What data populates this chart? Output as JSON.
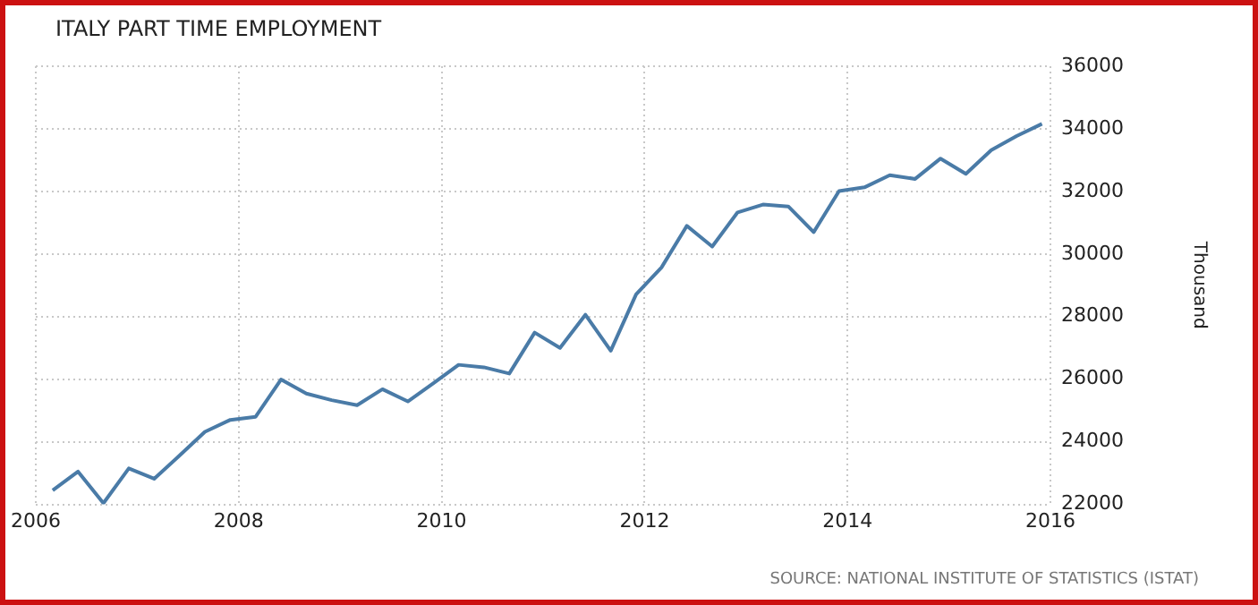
{
  "chart_data": {
    "type": "line",
    "title": "ITALY PART TIME EMPLOYMENT",
    "ylabel": "Thousand",
    "annotations": [
      "SOURCE: NATIONAL INSTITUTE OF STATISTICS (ISTAT)"
    ],
    "x": [
      "2006-03",
      "2006-06",
      "2006-09",
      "2006-12",
      "2007-03",
      "2007-06",
      "2007-09",
      "2007-12",
      "2008-03",
      "2008-06",
      "2008-09",
      "2008-12",
      "2009-03",
      "2009-06",
      "2009-09",
      "2009-12",
      "2010-03",
      "2010-06",
      "2010-09",
      "2010-12",
      "2011-03",
      "2011-06",
      "2011-09",
      "2011-12",
      "2012-03",
      "2012-06",
      "2012-09",
      "2012-12",
      "2013-03",
      "2013-06",
      "2013-09",
      "2013-12",
      "2014-03",
      "2014-06",
      "2014-09",
      "2014-12",
      "2015-03",
      "2015-06",
      "2015-09",
      "2015-12"
    ],
    "series": [
      {
        "color": "#4a7ba7",
        "values": [
          22450,
          23050,
          22040,
          23150,
          22820,
          23560,
          24320,
          24700,
          24800,
          25990,
          25540,
          25330,
          25170,
          25680,
          25290,
          25870,
          26460,
          26380,
          26180,
          27490,
          27000,
          28060,
          26910,
          28710,
          29570,
          30900,
          30240,
          31330,
          31580,
          31520,
          30700,
          32010,
          32130,
          32520,
          32400,
          33050,
          32560,
          33320,
          33770,
          34160
        ]
      }
    ],
    "xlim": [
      "2006",
      "2016"
    ],
    "xticks": [
      "2006",
      "2008",
      "2010",
      "2012",
      "2014",
      "2016"
    ],
    "ylim": [
      22000,
      36000
    ],
    "yticks": [
      22000,
      24000,
      26000,
      28000,
      30000,
      32000,
      34000,
      36000
    ],
    "grid": true,
    "legend": false,
    "marker": "none",
    "line_style": "solid"
  }
}
